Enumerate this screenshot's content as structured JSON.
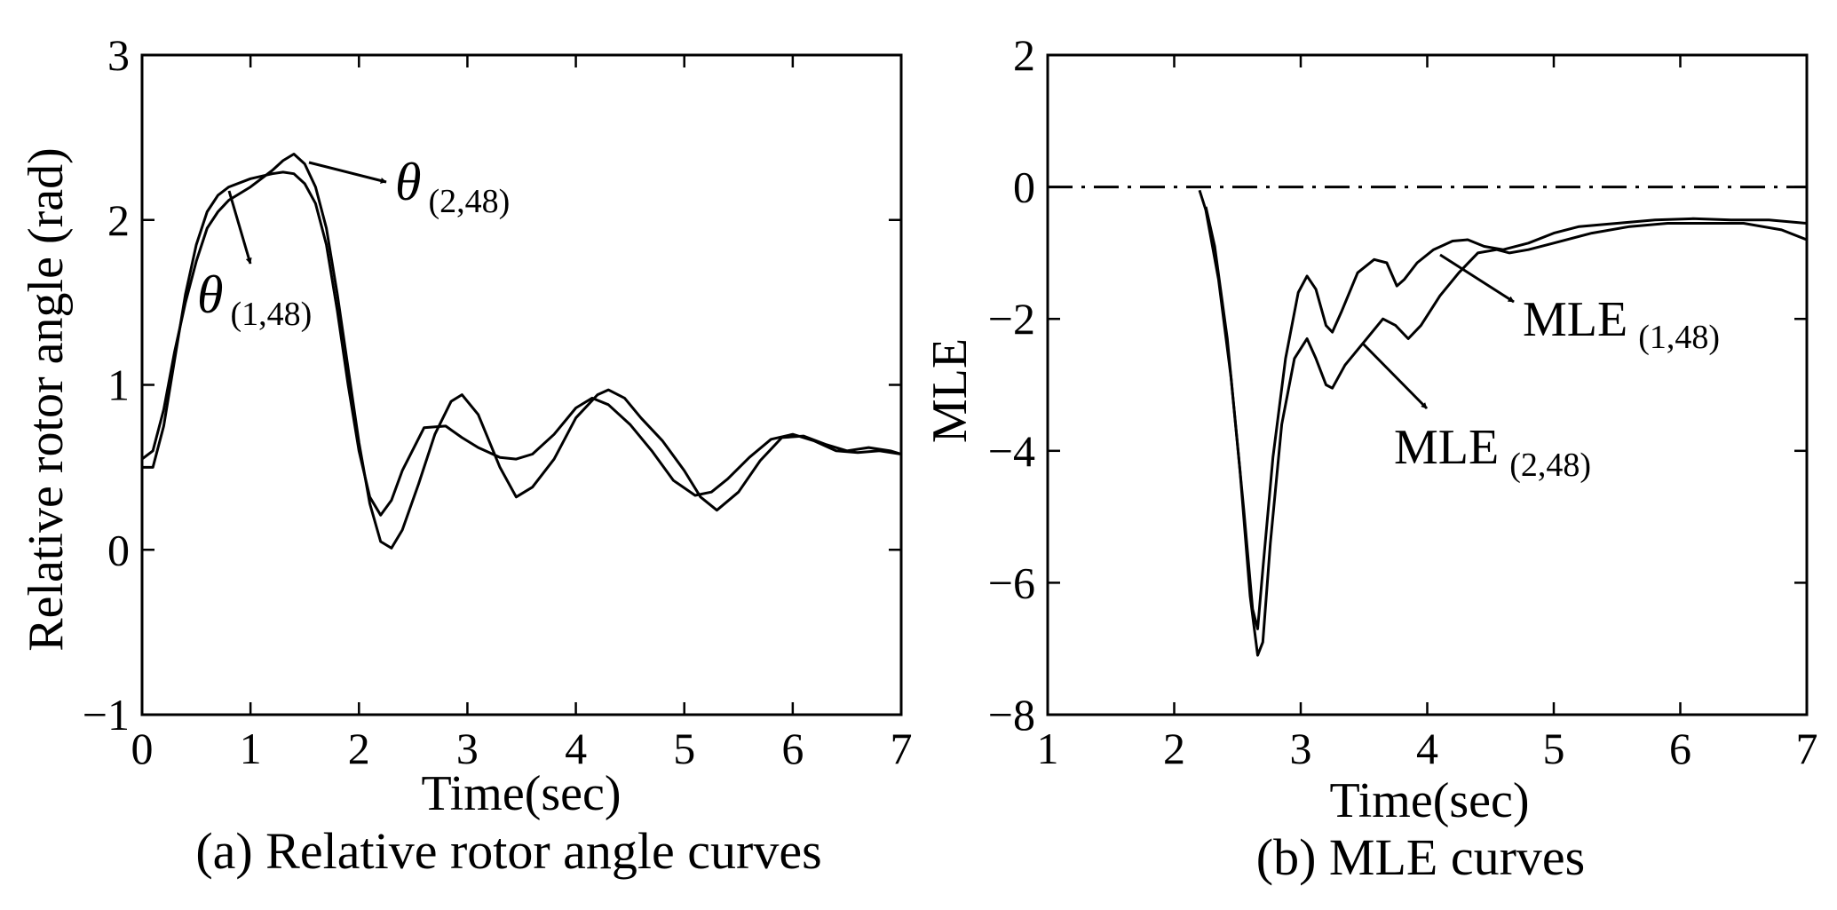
{
  "chart_data": [
    {
      "type": "line",
      "caption": "(a) Relative rotor angle curves",
      "xlabel": "Time(sec)",
      "ylabel": "Relative rotor angle (rad)",
      "xlim": [
        0,
        7
      ],
      "ylim": [
        -1,
        3
      ],
      "xticks": [
        "0",
        "1",
        "2",
        "3",
        "4",
        "5",
        "6",
        "7"
      ],
      "yticks": [
        "−1",
        "0",
        "1",
        "2",
        "3"
      ],
      "series": [
        {
          "name": "θ(1,48)",
          "x": [
            0,
            0.1,
            0.2,
            0.3,
            0.4,
            0.5,
            0.6,
            0.7,
            0.8,
            1.0,
            1.2,
            1.3,
            1.4,
            1.5,
            1.6,
            1.7,
            1.8,
            1.9,
            2.0,
            2.1,
            2.2,
            2.3,
            2.4,
            2.6,
            2.8,
            2.95,
            3.1,
            3.3,
            3.45,
            3.6,
            3.8,
            4.0,
            4.15,
            4.3,
            4.5,
            4.7,
            4.9,
            5.1,
            5.25,
            5.4,
            5.6,
            5.8,
            6.0,
            6.2,
            6.4,
            6.6,
            6.8,
            7.0
          ],
          "y": [
            0.5,
            0.5,
            0.75,
            1.15,
            1.55,
            1.85,
            2.05,
            2.15,
            2.2,
            2.25,
            2.28,
            2.29,
            2.28,
            2.22,
            2.1,
            1.85,
            1.45,
            1.0,
            0.6,
            0.32,
            0.21,
            0.3,
            0.48,
            0.74,
            0.75,
            0.68,
            0.62,
            0.56,
            0.55,
            0.58,
            0.7,
            0.86,
            0.92,
            0.88,
            0.76,
            0.6,
            0.42,
            0.33,
            0.35,
            0.43,
            0.56,
            0.67,
            0.7,
            0.66,
            0.6,
            0.59,
            0.6,
            0.58
          ]
        },
        {
          "name": "θ(2,48)",
          "x": [
            0,
            0.1,
            0.2,
            0.3,
            0.4,
            0.5,
            0.6,
            0.7,
            0.8,
            1.0,
            1.2,
            1.3,
            1.4,
            1.5,
            1.6,
            1.7,
            1.8,
            1.9,
            2.0,
            2.1,
            2.2,
            2.3,
            2.4,
            2.55,
            2.7,
            2.85,
            2.95,
            3.1,
            3.3,
            3.45,
            3.6,
            3.8,
            4.0,
            4.2,
            4.3,
            4.45,
            4.6,
            4.8,
            5.0,
            5.15,
            5.3,
            5.5,
            5.7,
            5.9,
            6.1,
            6.3,
            6.5,
            6.7,
            6.9,
            7.0
          ],
          "y": [
            0.55,
            0.6,
            0.85,
            1.2,
            1.5,
            1.75,
            1.95,
            2.05,
            2.12,
            2.2,
            2.3,
            2.36,
            2.4,
            2.34,
            2.2,
            1.95,
            1.55,
            1.1,
            0.65,
            0.28,
            0.05,
            0.01,
            0.12,
            0.4,
            0.7,
            0.9,
            0.94,
            0.82,
            0.5,
            0.32,
            0.38,
            0.55,
            0.8,
            0.94,
            0.97,
            0.92,
            0.8,
            0.66,
            0.48,
            0.32,
            0.24,
            0.35,
            0.54,
            0.68,
            0.69,
            0.64,
            0.6,
            0.62,
            0.6,
            0.58
          ]
        }
      ],
      "annotations": [
        {
          "symbol": "θ",
          "subscript": "(2,48)"
        },
        {
          "symbol": "θ",
          "subscript": "(1,48)"
        }
      ]
    },
    {
      "type": "line",
      "caption": "(b) MLE curves",
      "xlabel": "Time(sec)",
      "ylabel": "MLE",
      "xlim": [
        1,
        7
      ],
      "ylim": [
        -8,
        2
      ],
      "xticks": [
        "1",
        "2",
        "3",
        "4",
        "5",
        "6",
        "7"
      ],
      "yticks": [
        "−8",
        "−6",
        "−4",
        "−2",
        "0",
        "2"
      ],
      "reference_line": {
        "y": 0,
        "style": "dash-dot"
      },
      "series": [
        {
          "name": "MLE(1,48)",
          "x": [
            2.2,
            2.25,
            2.35,
            2.45,
            2.55,
            2.62,
            2.66,
            2.7,
            2.78,
            2.88,
            2.98,
            3.05,
            3.12,
            3.2,
            3.25,
            3.32,
            3.45,
            3.58,
            3.68,
            3.76,
            3.82,
            3.92,
            4.05,
            4.2,
            4.32,
            4.45,
            4.6,
            4.8,
            5.0,
            5.2,
            5.5,
            5.8,
            6.1,
            6.4,
            6.7,
            7.0
          ],
          "y": [
            -0.05,
            -0.35,
            -1.4,
            -2.9,
            -4.9,
            -6.4,
            -6.7,
            -5.8,
            -4.1,
            -2.6,
            -1.6,
            -1.35,
            -1.55,
            -2.1,
            -2.2,
            -1.9,
            -1.3,
            -1.1,
            -1.15,
            -1.5,
            -1.4,
            -1.15,
            -0.95,
            -0.82,
            -0.8,
            -0.9,
            -0.95,
            -0.85,
            -0.7,
            -0.6,
            -0.55,
            -0.5,
            -0.48,
            -0.5,
            -0.5,
            -0.55
          ]
        },
        {
          "name": "MLE(2,48)",
          "x": [
            2.25,
            2.32,
            2.42,
            2.52,
            2.6,
            2.66,
            2.7,
            2.76,
            2.85,
            2.95,
            3.05,
            3.12,
            3.2,
            3.25,
            3.35,
            3.5,
            3.65,
            3.75,
            3.85,
            3.95,
            4.1,
            4.25,
            4.4,
            4.55,
            4.65,
            4.8,
            5.0,
            5.3,
            5.6,
            5.9,
            6.2,
            6.5,
            6.8,
            7.0
          ],
          "y": [
            -0.3,
            -0.9,
            -2.3,
            -4.3,
            -6.2,
            -7.1,
            -6.9,
            -5.4,
            -3.6,
            -2.6,
            -2.3,
            -2.6,
            -3.0,
            -3.05,
            -2.7,
            -2.35,
            -2.0,
            -2.1,
            -2.3,
            -2.1,
            -1.65,
            -1.3,
            -1.0,
            -0.95,
            -1.0,
            -0.95,
            -0.85,
            -0.7,
            -0.6,
            -0.55,
            -0.55,
            -0.55,
            -0.65,
            -0.8
          ]
        }
      ],
      "annotations": [
        {
          "label": "MLE",
          "subscript": "(1,48)"
        },
        {
          "label": "MLE",
          "subscript": "(2,48)"
        }
      ]
    }
  ]
}
